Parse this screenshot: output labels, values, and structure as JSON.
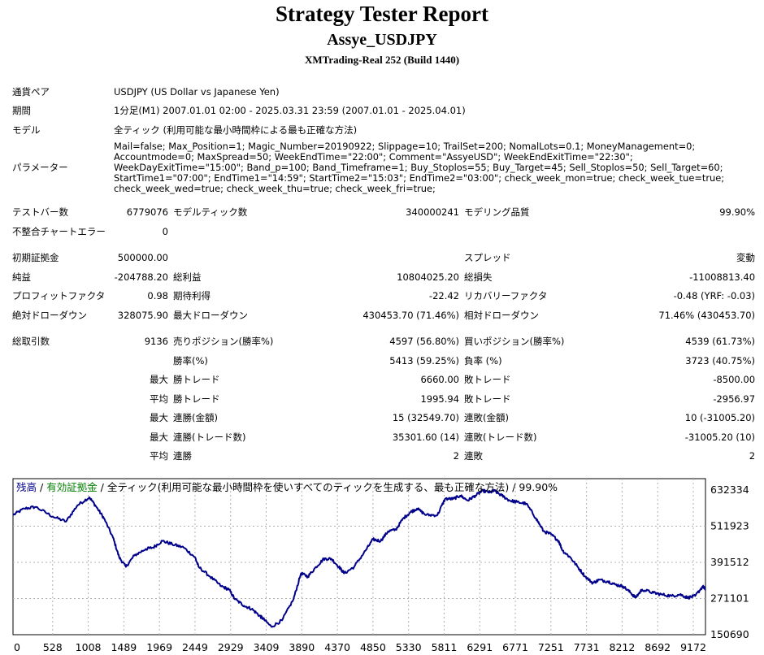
{
  "report": {
    "title": "Strategy Tester Report",
    "ea_name": "Assye_USDJPY",
    "server": "XMTrading-Real 252 (Build 1440)"
  },
  "info": {
    "symbol_label": "通貨ペア",
    "symbol_value": "USDJPY (US Dollar vs Japanese Yen)",
    "period_label": "期間",
    "period_value": "1分足(M1) 2007.01.01 02:00 - 2025.03.31 23:59 (2007.01.01 - 2025.04.01)",
    "model_label": "モデル",
    "model_value": "全ティック (利用可能な最小時間枠による最も正確な方法)",
    "params_label": "パラメーター",
    "params_value": "Mail=false; Max_Position=1; Magic_Number=20190922; Slippage=10; TrailSet=200; NomalLots=0.1; MoneyManagement=0; Accountmode=0; MaxSpread=50; WeekEndTime=\"22:00\"; Comment=\"AssyeUSD\"; WeekEndExitTime=\"22:30\"; WeekDayExitTime=\"15:00\"; Band_p=100; Band_Timeframe=1; Buy_Stoplos=55; Buy_Target=45; Sell_Stoplos=50; Sell_Target=60; StartTime1=\"07:00\"; EndTime1=\"14:59\"; StartTime2=\"15:03\"; EndTime2=\"03:00\"; check_week_mon=true; check_week_tue=true; check_week_wed=true; check_week_thu=true; check_week_fri=true;"
  },
  "stats": {
    "bars_label": "テストバー数",
    "bars_value": "6779076",
    "ticks_label": "モデルティック数",
    "ticks_value": "340000241",
    "quality_label": "モデリング品質",
    "quality_value": "99.90%",
    "mismatch_label": "不整合チャートエラー",
    "mismatch_value": "0",
    "deposit_label": "初期証拠金",
    "deposit_value": "500000.00",
    "spread_label": "スプレッド",
    "spread_value": "変動",
    "net_label": "純益",
    "net_value": "-204788.20",
    "gross_profit_label": "総利益",
    "gross_profit_value": "10804025.20",
    "gross_loss_label": "総損失",
    "gross_loss_value": "-11008813.40",
    "pf_label": "プロフィットファクタ",
    "pf_value": "0.98",
    "payoff_label": "期待利得",
    "payoff_value": "-22.42",
    "recovery_label": "リカバリーファクタ",
    "recovery_value": "-0.48 (YRF: -0.03)",
    "abs_dd_label": "絶対ドローダウン",
    "abs_dd_value": "328075.90",
    "max_dd_label": "最大ドローダウン",
    "max_dd_value": "430453.70 (71.46%)",
    "rel_dd_label": "相対ドローダウン",
    "rel_dd_value": "71.46% (430453.70)",
    "trades_label": "総取引数",
    "trades_value": "9136",
    "short_label": "売りポジション(勝率%)",
    "short_value": "4597 (56.80%)",
    "long_label": "買いポジション(勝率%)",
    "long_value": "4539 (61.73%)",
    "win_label": "勝率(%)",
    "win_value": "5413 (59.25%)",
    "loss_label": "負率 (%)",
    "loss_value": "3723 (40.75%)",
    "max_word": "最大",
    "avg_word": "平均",
    "largest_win_label": "勝トレード",
    "largest_win_value": "6660.00",
    "largest_loss_label": "敗トレード",
    "largest_loss_value": "-8500.00",
    "avg_win_label": "勝トレード",
    "avg_win_value": "1995.94",
    "avg_loss_label": "敗トレード",
    "avg_loss_value": "-2956.97",
    "cons_wins_amt_label": "連勝(金額)",
    "cons_wins_amt_value": "15 (32549.70)",
    "cons_losses_amt_label": "連敗(金額)",
    "cons_losses_amt_value": "10 (-31005.20)",
    "cons_wins_cnt_label": "連勝(トレード数)",
    "cons_wins_cnt_value": "35301.60 (14)",
    "cons_losses_cnt_label": "連敗(トレード数)",
    "cons_losses_cnt_value": "-31005.20 (10)",
    "avg_cons_wins_label": "連勝",
    "avg_cons_wins_value": "2",
    "avg_cons_losses_label": "連敗",
    "avg_cons_losses_value": "2"
  },
  "chart_data": {
    "type": "line",
    "legend_balance": "残高",
    "legend_sep1": " / ",
    "legend_equity": "有効証拠金",
    "legend_rest": " / 全ティック(利用可能な最小時間枠を使いすべてのティックを生成する、最も正確な方法) / 99.90%",
    "balance_color": "#00008b",
    "equity_color": "#008000",
    "y_ticks": [
      "632334",
      "511923",
      "391512",
      "271101",
      "150690"
    ],
    "x_ticks": [
      "0",
      "528",
      "1008",
      "1489",
      "1969",
      "2449",
      "2929",
      "3409",
      "3890",
      "4370",
      "4850",
      "5330",
      "5811",
      "6291",
      "6771",
      "7251",
      "7731",
      "8212",
      "8692",
      "9172"
    ],
    "ylim": [
      150690,
      632334
    ],
    "xlim": [
      0,
      9136
    ],
    "series": [
      {
        "x": [
          0,
          150,
          300,
          528,
          700,
          850,
          1008,
          1100,
          1200,
          1320,
          1400,
          1489,
          1600,
          1750,
          1850,
          1969,
          2100,
          2250,
          2400,
          2449,
          2600,
          2750,
          2850,
          2929,
          3050,
          3150,
          3250,
          3300,
          3409,
          3550,
          3700,
          3800,
          3890,
          4000,
          4100,
          4200,
          4300,
          4370,
          4500,
          4650,
          4750,
          4850,
          4950,
          5050,
          5150,
          5250,
          5330,
          5450,
          5600,
          5700,
          5811,
          5900,
          6000,
          6100,
          6200,
          6291,
          6350,
          6450,
          6550,
          6650,
          6771,
          6900,
          7000,
          7100,
          7200,
          7251,
          7350,
          7450,
          7550,
          7650,
          7731,
          7850,
          7950,
          8050,
          8150,
          8212,
          8300,
          8450,
          8550,
          8692,
          8800,
          8900,
          9000,
          9100,
          9136
        ],
        "y": [
          520000,
          540000,
          545000,
          515000,
          500000,
          550000,
          575000,
          545000,
          510000,
          450000,
          390000,
          360000,
          395000,
          415000,
          420000,
          440000,
          430000,
          420000,
          390000,
          360000,
          330000,
          300000,
          290000,
          260000,
          240000,
          230000,
          210000,
          200000,
          175000,
          195000,
          260000,
          340000,
          330000,
          360000,
          385000,
          385000,
          360000,
          340000,
          360000,
          410000,
          445000,
          440000,
          470000,
          475000,
          510000,
          530000,
          540000,
          520000,
          520000,
          570000,
          570000,
          580000,
          565000,
          580000,
          595000,
          590000,
          595000,
          580000,
          565000,
          560000,
          555000,
          510000,
          470000,
          460000,
          440000,
          410000,
          390000,
          360000,
          330000,
          310000,
          320000,
          315000,
          305000,
          300000,
          280000,
          265000,
          290000,
          280000,
          275000,
          270000,
          275000,
          265000,
          270000,
          300000,
          290000
        ]
      }
    ]
  }
}
